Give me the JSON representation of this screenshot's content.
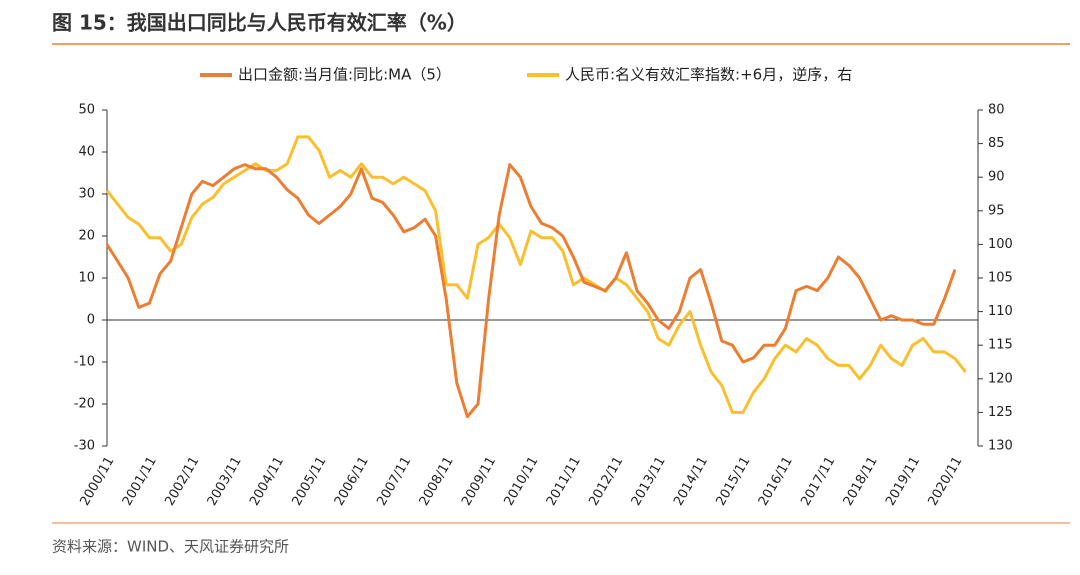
{
  "chart_data": {
    "type": "line",
    "title": "图 15：我国出口同比与人民币有效汇率（%）",
    "source": "资料来源：WIND、天风证券研究所",
    "categories": [
      "2000/11",
      null,
      null,
      null,
      "2001/11",
      null,
      null,
      null,
      "2002/11",
      null,
      null,
      null,
      "2003/11",
      null,
      null,
      null,
      "2004/11",
      null,
      null,
      null,
      "2005/11",
      null,
      null,
      null,
      "2006/11",
      null,
      null,
      null,
      "2007/11",
      null,
      null,
      null,
      "2008/11",
      null,
      null,
      null,
      "2009/11",
      null,
      null,
      null,
      "2010/11",
      null,
      null,
      null,
      "2011/11",
      null,
      null,
      null,
      "2012/11",
      null,
      null,
      null,
      "2013/11",
      null,
      null,
      null,
      "2014/11",
      null,
      null,
      null,
      "2015/11",
      null,
      null,
      null,
      "2016/11",
      null,
      null,
      null,
      "2017/11",
      null,
      null,
      null,
      "2018/11",
      null,
      null,
      null,
      "2019/11",
      null,
      null,
      null,
      "2020/11",
      null
    ],
    "series": [
      {
        "name": "出口金额:当月值:同比:MA（5）",
        "color": "#ed7d31",
        "axis": "y",
        "values": [
          18,
          14,
          10,
          3,
          4,
          11,
          14,
          22,
          30,
          33,
          32,
          34,
          36,
          37,
          36,
          36,
          34,
          31,
          29,
          25,
          23,
          25,
          27,
          30,
          36,
          29,
          28,
          25,
          21,
          22,
          24,
          20,
          5,
          -15,
          -23,
          -20,
          5,
          25,
          37,
          34,
          27,
          23,
          22,
          20,
          15,
          9,
          8,
          7,
          10,
          16,
          7,
          4,
          0,
          -2,
          2,
          10,
          12,
          4,
          -5,
          -6,
          -10,
          -9,
          -6,
          -6,
          -2,
          7,
          8,
          7,
          10,
          15,
          13,
          10,
          5,
          0,
          1,
          0,
          0,
          -1,
          -1,
          5,
          12,
          null
        ]
      },
      {
        "name": "人民币:名义有效汇率指数:+6月，逆序，右",
        "color": "#fbbf2e",
        "axis": "y2",
        "values": [
          92,
          94,
          96,
          97,
          99,
          99,
          101,
          100,
          96,
          94,
          93,
          91,
          90,
          89,
          88,
          89,
          89,
          88,
          84,
          84,
          86,
          90,
          89,
          90,
          88,
          90,
          90,
          91,
          90,
          91,
          92,
          95,
          106,
          106,
          108,
          100,
          99,
          97,
          99,
          103,
          98,
          99,
          99,
          101,
          106,
          105,
          106,
          107,
          105,
          106,
          108,
          110,
          114,
          115,
          112,
          110,
          115,
          119,
          121,
          125,
          125,
          122,
          120,
          117,
          115,
          116,
          114,
          115,
          117,
          118,
          118,
          120,
          118,
          115,
          117,
          118,
          115,
          114,
          116,
          116,
          117,
          119
        ]
      }
    ],
    "ylim": [
      -30,
      50
    ],
    "yticks": [
      -30,
      -20,
      -10,
      0,
      10,
      20,
      30,
      40,
      50
    ],
    "y2lim": [
      130,
      80
    ],
    "y2ticks": [
      80,
      85,
      90,
      95,
      100,
      105,
      110,
      115,
      120,
      125,
      130
    ],
    "grid": false
  }
}
